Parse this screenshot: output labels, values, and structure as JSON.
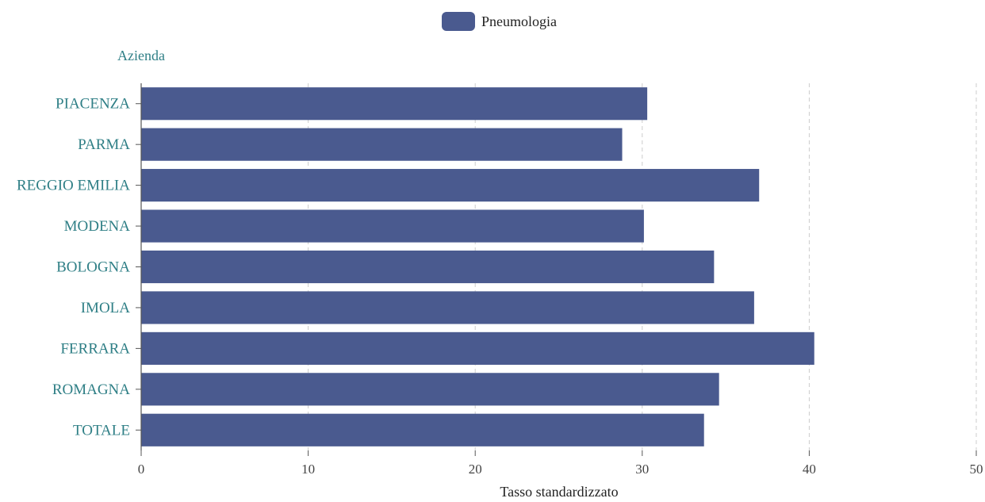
{
  "legend": {
    "label": "Pneumologia"
  },
  "chart_data": {
    "type": "bar",
    "orientation": "horizontal",
    "title": "",
    "ylabel": "Azienda",
    "xlabel": "Tasso standardizzato",
    "categories": [
      "PIACENZA",
      "PARMA",
      "REGGIO EMILIA",
      "MODENA",
      "BOLOGNA",
      "IMOLA",
      "FERRARA",
      "ROMAGNA",
      "TOTALE"
    ],
    "series": [
      {
        "name": "Pneumologia",
        "values": [
          30.3,
          28.8,
          37.0,
          30.1,
          34.3,
          36.7,
          40.3,
          34.6,
          33.7
        ],
        "color": "#4a5a8f"
      }
    ],
    "xlim": [
      0,
      50
    ],
    "xticks": [
      0,
      10,
      20,
      30,
      40,
      50
    ],
    "grid": "vertical dashed",
    "legend_position": "top-center"
  },
  "colors": {
    "bar": "#4a5a8f",
    "category_label": "#2f7f86",
    "grid": "#cccccc",
    "axis": "#555555"
  }
}
